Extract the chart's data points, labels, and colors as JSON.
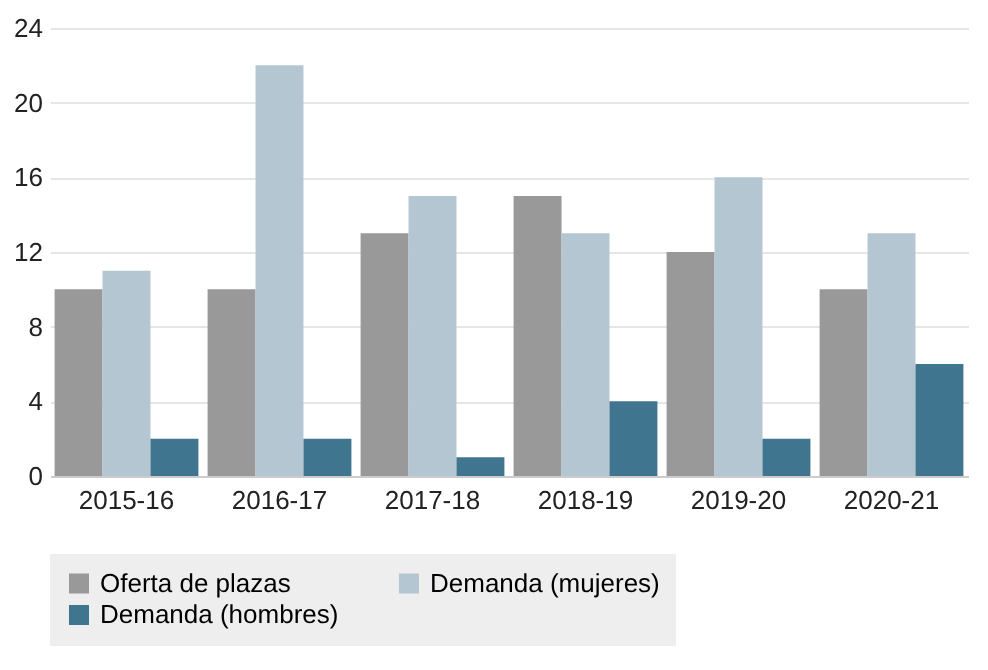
{
  "chart_data": {
    "type": "bar",
    "categories": [
      "2015-16",
      "2016-17",
      "2017-18",
      "2018-19",
      "2019-20",
      "2020-21"
    ],
    "series": [
      {
        "name": "Oferta de plazas",
        "color": "#999999",
        "values": [
          10,
          10,
          13,
          15,
          12,
          10
        ]
      },
      {
        "name": "Demanda (mujeres)",
        "color": "#b3c6d2",
        "values": [
          11,
          22,
          15,
          13,
          16,
          13
        ]
      },
      {
        "name": "Demanda (hombres)",
        "color": "#40758f",
        "values": [
          2,
          2,
          1,
          4,
          2,
          6
        ]
      }
    ],
    "ylim": [
      0,
      24
    ],
    "yticks": [
      0,
      4,
      8,
      12,
      16,
      20,
      24
    ],
    "grid": "y",
    "legend": "bottom"
  }
}
